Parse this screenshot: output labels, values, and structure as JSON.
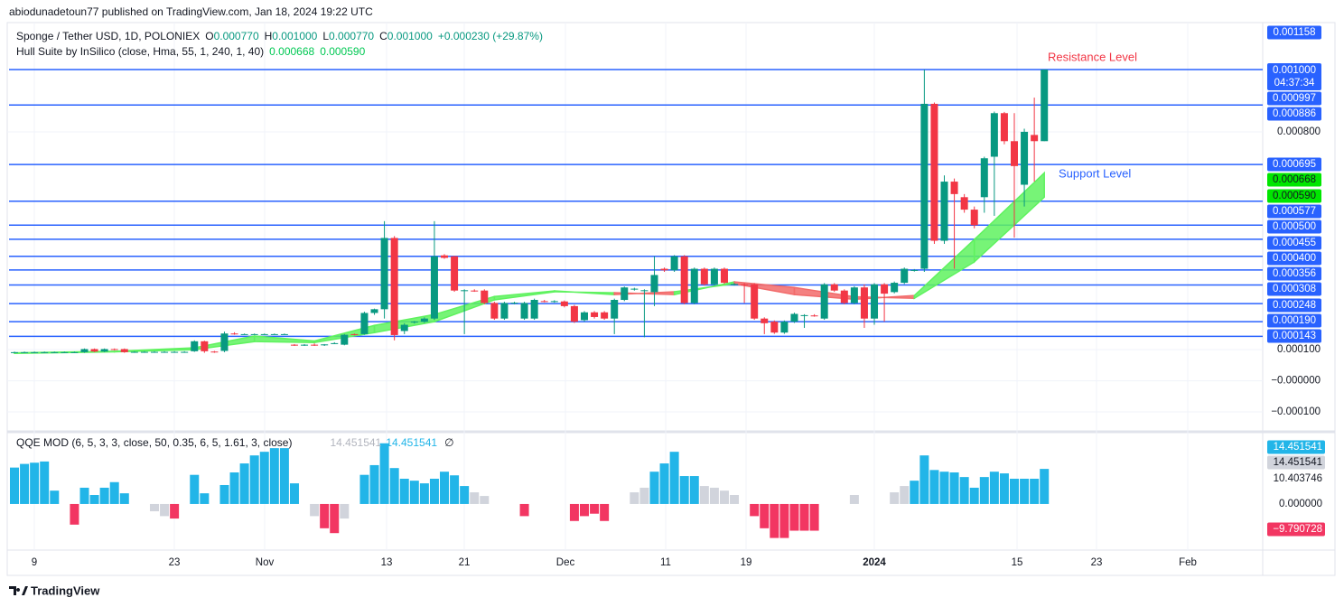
{
  "header": {
    "publisher": "abiodunadetoun77 published on TradingView.com, Jan 18, 2024 19:22 UTC",
    "brand": "TradingView"
  },
  "legend": {
    "symbol": "Sponge / Tether USD, 1D, POLONIEX",
    "ohlc_labels": [
      "O",
      "H",
      "L",
      "C"
    ],
    "ohlc_values": [
      "0.000770",
      "0.001000",
      "0.000770",
      "0.001000"
    ],
    "change": "+0.000230 (+29.87%)",
    "hull_title": "Hull Suite by InSilico (close, Hma, 55, 1, 240, 1, 40)",
    "hull_values": [
      "0.000668",
      "0.000590"
    ],
    "qqe_title": "QQE MOD (6, 5, 3, 3, close, 50, 0.35, 6, 5, 1.61, 3, close)",
    "qqe_values": [
      "14.451541",
      "14.451541"
    ],
    "qqe_symbol": "∅"
  },
  "chart_data": {
    "type": "candlestick",
    "up_color": "#089981",
    "down_color": "#f23645",
    "ylim": [
      -0.000155,
      0.001151
    ],
    "yticks": [
      {
        "value": 0.0008,
        "label": "0.000800"
      },
      {
        "value": 0.0001,
        "label": "0.000100"
      },
      {
        "value": 0,
        "label": "−0.000000"
      },
      {
        "value": -0.0001,
        "label": "−0.000100"
      }
    ],
    "levels": [
      0.001,
      0.000886,
      0.000695,
      0.000577,
      0.0005,
      0.000455,
      0.0004,
      0.000356,
      0.000308,
      0.000248,
      0.00019,
      0.000143
    ],
    "level_color": "#2962ff",
    "price_labels": [
      {
        "value": 0.001158,
        "label": "0.001158",
        "kind": "blue"
      },
      {
        "value": 0.001,
        "label": "0.001000",
        "kind": "blue"
      },
      {
        "value": 0.000997,
        "label": "0.000997",
        "kind": "blue"
      },
      {
        "value": 0.000886,
        "label": "0.000886",
        "kind": "blue"
      },
      {
        "value": 0.000695,
        "label": "0.000695",
        "kind": "blue"
      },
      {
        "value": 0.000668,
        "label": "0.000668",
        "kind": "green"
      },
      {
        "value": 0.00059,
        "label": "0.000590",
        "kind": "green"
      },
      {
        "value": 0.000577,
        "label": "0.000577",
        "kind": "blue"
      },
      {
        "value": 0.0005,
        "label": "0.000500",
        "kind": "blue"
      },
      {
        "value": 0.000455,
        "label": "0.000455",
        "kind": "blue"
      },
      {
        "value": 0.0004,
        "label": "0.000400",
        "kind": "blue"
      },
      {
        "value": 0.000356,
        "label": "0.000356",
        "kind": "blue"
      },
      {
        "value": 0.000308,
        "label": "0.000308",
        "kind": "blue"
      },
      {
        "value": 0.000248,
        "label": "0.000248",
        "kind": "blue"
      },
      {
        "value": 0.00019,
        "label": "0.000190",
        "kind": "blue"
      },
      {
        "value": 0.000143,
        "label": "0.000143",
        "kind": "blue"
      }
    ],
    "countdown": "04:37:34",
    "annotations": {
      "resistance": "Resistance Level",
      "support": "Support Level"
    },
    "time_labels": [
      "9",
      "23",
      "Nov",
      "13",
      "21",
      "Dec",
      "11",
      "19",
      "2024",
      "15",
      "23",
      "Feb"
    ],
    "candles": [
      [
        9.2e-05,
        9.4e-05,
        9e-05,
        9.2e-05
      ],
      [
        9.2e-05,
        9.4e-05,
        9e-05,
        9.2e-05
      ],
      [
        9.2e-05,
        9.4e-05,
        9e-05,
        9.2e-05
      ],
      [
        9.2e-05,
        9.4e-05,
        9e-05,
        9.2e-05
      ],
      [
        9.2e-05,
        9.4e-05,
        9e-05,
        9.2e-05
      ],
      [
        9.2e-05,
        9.4e-05,
        9e-05,
        9.2e-05
      ],
      [
        9.2e-05,
        9.4e-05,
        9e-05,
        9.2e-05
      ],
      [
        9.2e-05,
        0.000104,
        9e-05,
        0.000102
      ],
      [
        0.000102,
        0.000104,
        9.2e-05,
        9.4e-05
      ],
      [
        9.4e-05,
        0.000104,
        9.2e-05,
        0.000102
      ],
      [
        0.000102,
        0.000104,
        9.8e-05,
        0.000101
      ],
      [
        0.000102,
        0.000104,
        9e-05,
        9.2e-05
      ],
      [
        9.2e-05,
        9.5e-05,
        9e-05,
        9.3e-05
      ],
      [
        9.2e-05,
        9.5e-05,
        9e-05,
        9.3e-05
      ],
      [
        9.2e-05,
        9.5e-05,
        9e-05,
        9.3e-05
      ],
      [
        9.2e-05,
        9.5e-05,
        9e-05,
        9.3e-05
      ],
      [
        9.2e-05,
        9.5e-05,
        9e-05,
        9.3e-05
      ],
      [
        9.2e-05,
        9.5e-05,
        9e-05,
        9.3e-05
      ],
      [
        9.5e-05,
        0.00013,
        9.3e-05,
        0.000127
      ],
      [
        0.000127,
        0.000129,
        9e-05,
        9.5e-05
      ],
      [
        9.4e-05,
        9.6e-05,
        9e-05,
        9.3e-05
      ],
      [
        9.6e-05,
        0.000158,
        9.2e-05,
        0.000152
      ],
      [
        0.000152,
        0.000156,
        0.000148,
        0.00015
      ],
      [
        0.00015,
        0.000152,
        0.000148,
        0.00015
      ],
      [
        0.00015,
        0.000152,
        0.000148,
        0.00015
      ],
      [
        0.00015,
        0.000152,
        0.000148,
        0.00015
      ],
      [
        0.00015,
        0.000152,
        0.000148,
        0.00015
      ],
      [
        0.00015,
        0.000152,
        0.000148,
        0.00015
      ],
      [
        0.000116,
        0.000118,
        0.000112,
        0.000114
      ],
      [
        0.000114,
        0.000118,
        0.000112,
        0.000116
      ],
      [
        0.000116,
        0.00012,
        0.000112,
        0.000114
      ],
      [
        0.000114,
        0.000118,
        0.000112,
        0.000117
      ],
      [
        0.00012,
        0.000124,
        0.000118,
        0.000121
      ],
      [
        0.000116,
        0.00015,
        0.000114,
        0.000148
      ],
      [
        0.00015,
        0.000152,
        0.000146,
        0.000149
      ],
      [
        0.00015,
        0.000222,
        0.000148,
        0.000218
      ],
      [
        0.000218,
        0.000232,
        0.000212,
        0.00023
      ],
      [
        0.00023,
        0.000513,
        0.0002,
        0.000459
      ],
      [
        0.000459,
        0.000465,
        0.00013,
        0.000147
      ],
      [
        0.00016,
        0.000185,
        0.00015,
        0.00018
      ],
      [
        0.000188,
        0.000192,
        0.000184,
        0.00019
      ],
      [
        0.00019,
        0.000204,
        0.000186,
        0.0002
      ],
      [
        0.0002,
        0.000513,
        0.000196,
        0.0004
      ],
      [
        0.000403,
        0.000407,
        0.000392,
        0.000395
      ],
      [
        0.0004,
        0.000402,
        0.000286,
        0.00029
      ],
      [
        0.00029,
        0.000294,
        0.00015,
        0.000291
      ],
      [
        0.00029,
        0.000294,
        0.000286,
        0.000289
      ],
      [
        0.00029,
        0.000294,
        0.000246,
        0.00025
      ],
      [
        0.00025,
        0.000254,
        0.000196,
        0.0002
      ],
      [
        0.0002,
        0.000254,
        0.000196,
        0.00025
      ],
      [
        0.00025,
        0.000254,
        0.000246,
        0.000251
      ],
      [
        0.0002,
        0.000254,
        0.000196,
        0.00025
      ],
      [
        0.0002,
        0.000264,
        0.000196,
        0.00026
      ],
      [
        0.000256,
        0.00026,
        0.000252,
        0.000255
      ],
      [
        0.000255,
        0.000259,
        0.000251,
        0.000256
      ],
      [
        0.000255,
        0.000258,
        0.000236,
        0.00024
      ],
      [
        0.00024,
        0.000244,
        0.000186,
        0.00019
      ],
      [
        0.000195,
        0.000224,
        0.00019,
        0.00022
      ],
      [
        0.00022,
        0.000224,
        0.0002,
        0.000205
      ],
      [
        0.00022,
        0.000224,
        0.000196,
        0.0002
      ],
      [
        0.0002,
        0.000264,
        0.00015,
        0.00026
      ],
      [
        0.00026,
        0.000303,
        0.000256,
        0.0003
      ],
      [
        0.000295,
        0.000299,
        0.00029,
        0.000296
      ],
      [
        0.00029,
        0.000294,
        0.00014,
        0.000291
      ],
      [
        0.000285,
        0.0004,
        0.00024,
        0.00034
      ],
      [
        0.00036,
        0.000364,
        0.00035,
        0.000355
      ],
      [
        0.000355,
        0.000404,
        0.00035,
        0.0004
      ],
      [
        0.0004,
        0.000404,
        0.000246,
        0.00025
      ],
      [
        0.00025,
        0.000364,
        0.000246,
        0.00036
      ],
      [
        0.00036,
        0.000364,
        0.000306,
        0.00031
      ],
      [
        0.00031,
        0.000364,
        0.000306,
        0.00036
      ],
      [
        0.00036,
        0.000364,
        0.000311,
        0.000315
      ],
      [
        0.00031,
        0.000314,
        0.000306,
        0.000311
      ],
      [
        0.00031,
        0.000314,
        0.00025,
        0.000309
      ],
      [
        0.00031,
        0.000314,
        0.000196,
        0.0002
      ],
      [
        0.0002,
        0.000204,
        0.00015,
        0.000185
      ],
      [
        0.00019,
        0.000194,
        0.000151,
        0.000155
      ],
      [
        0.000155,
        0.000194,
        0.000151,
        0.00019
      ],
      [
        0.00019,
        0.000219,
        0.000186,
        0.000215
      ],
      [
        0.00021,
        0.000214,
        0.00017,
        0.000211
      ],
      [
        0.00021,
        0.000214,
        0.000206,
        0.000209
      ],
      [
        0.0002,
        0.000314,
        0.000196,
        0.00031
      ],
      [
        0.00031,
        0.000314,
        0.000286,
        0.00029
      ],
      [
        0.00029,
        0.000294,
        0.000246,
        0.00025
      ],
      [
        0.00025,
        0.000304,
        0.000246,
        0.0003
      ],
      [
        0.0003,
        0.00031,
        0.00017,
        0.0002
      ],
      [
        0.0002,
        0.000314,
        0.00018,
        0.00031
      ],
      [
        0.00031,
        0.000314,
        0.00019,
        0.00028
      ],
      [
        0.000285,
        0.000319,
        0.000281,
        0.000315
      ],
      [
        0.000315,
        0.000364,
        0.000311,
        0.00036
      ],
      [
        0.000355,
        0.000359,
        0.000351,
        0.000356
      ],
      [
        0.00036,
        0.001,
        0.00035,
        0.00089
      ],
      [
        0.00089,
        0.000894,
        0.00044,
        0.00045
      ],
      [
        0.00045,
        0.00066,
        0.00044,
        0.00064
      ],
      [
        0.00064,
        0.00065,
        0.00036,
        0.0006
      ],
      [
        0.00059,
        0.0006,
        0.00054,
        0.00055
      ],
      [
        0.00055,
        0.00056,
        0.00049,
        0.0005
      ],
      [
        0.00059,
        0.00072,
        0.00054,
        0.000715
      ],
      [
        0.00072,
        0.000865,
        0.00053,
        0.00086
      ],
      [
        0.00086,
        0.000864,
        0.00076,
        0.00077
      ],
      [
        0.00077,
        0.00086,
        0.00046,
        0.00069
      ],
      [
        0.00063,
        0.00081,
        0.00056,
        0.0008
      ],
      [
        0.00079,
        0.00091,
        0.00064,
        0.00077
      ],
      [
        0.00077,
        0.001,
        0.00077,
        0.001
      ]
    ],
    "hull": {
      "x": [
        0,
        10,
        18,
        24,
        30,
        36,
        42,
        48,
        54,
        60,
        66,
        72,
        78,
        84,
        90,
        96,
        103
      ],
      "a": [
        9e-05,
        9.5e-05,
        0.000106,
        0.000144,
        0.000128,
        0.000178,
        0.000213,
        0.000271,
        0.000289,
        0.000277,
        0.000286,
        0.000312,
        0.000277,
        0.000262,
        0.000274,
        0.000454,
        0.000668
      ],
      "b": [
        8.8e-05,
        9.3e-05,
        0.0001,
        0.000126,
        0.000123,
        0.000155,
        0.00019,
        0.00026,
        0.000286,
        0.000283,
        0.000277,
        0.000318,
        0.0003,
        0.00027,
        0.000265,
        0.000382,
        0.00059
      ],
      "up_color": "#5ff25f",
      "down_color": "#f26b6b"
    },
    "qqe": {
      "ylim": [
        -17.5,
        29
      ],
      "values": [
        15,
        16.5,
        17,
        17.5,
        5.5,
        null,
        -8.5,
        6.7,
        3.7,
        6.7,
        9,
        4.4,
        null,
        null,
        -3,
        -5,
        -6,
        null,
        12,
        4.4,
        null,
        7.8,
        13,
        16.7,
        20,
        21.5,
        23,
        23,
        8.5,
        null,
        -5,
        -10,
        -12,
        -6,
        null,
        12,
        16,
        25,
        14.8,
        10.4,
        9.6,
        8.5,
        10.4,
        13.3,
        11.8,
        7.4,
        4.8,
        3.3,
        null,
        null,
        null,
        -5,
        null,
        null,
        null,
        null,
        -7,
        -5,
        -4,
        -7,
        null,
        null,
        4.8,
        6.7,
        13.3,
        16.7,
        21.5,
        11.5,
        11.5,
        7.4,
        6.7,
        5.5,
        3.7,
        null,
        -5,
        -10,
        -14,
        -14,
        -11,
        -11,
        -11,
        null,
        null,
        null,
        3.7,
        null,
        null,
        null,
        4.8,
        7.4,
        9.6,
        20,
        14,
        13.3,
        13,
        11.1,
        6.7,
        11.1,
        13.3,
        12.6,
        10.4,
        10.4,
        10.4,
        14.451541
      ],
      "kinds": [
        "b",
        "b",
        "b",
        "b",
        "b",
        null,
        "r",
        "b",
        "b",
        "b",
        "b",
        "b",
        null,
        null,
        "g",
        "g",
        "r",
        null,
        "b",
        "b",
        null,
        "b",
        "b",
        "b",
        "b",
        "b",
        "b",
        "b",
        "b",
        null,
        "g",
        "r",
        "r",
        "g",
        null,
        "b",
        "b",
        "b",
        "b",
        "b",
        "b",
        "b",
        "b",
        "b",
        "b",
        "b",
        "g",
        "g",
        null,
        null,
        null,
        "r",
        null,
        null,
        null,
        null,
        "r",
        "r",
        "r",
        "r",
        null,
        null,
        "g",
        "g",
        "b",
        "b",
        "b",
        "b",
        "b",
        "g",
        "g",
        "g",
        "g",
        null,
        "r",
        "r",
        "r",
        "r",
        "r",
        "r",
        "r",
        null,
        null,
        null,
        "g",
        null,
        null,
        null,
        "g",
        "g",
        "b",
        "b",
        "b",
        "b",
        "b",
        "b",
        "b",
        "b",
        "b",
        "b",
        "b",
        "b",
        "b",
        "b"
      ],
      "palette": {
        "b": "#22b5e8",
        "g": "#d1d4dc",
        "r": "#f23662"
      },
      "labels": [
        {
          "value": 14.451541,
          "label": "14.451541",
          "kind": "b"
        },
        {
          "value": 14.451541,
          "label": "14.451541",
          "kind": "g"
        },
        {
          "value": 10.403746,
          "label": "10.403746",
          "kind": "plain"
        },
        {
          "value": 0,
          "label": "0.000000",
          "kind": "plain"
        },
        {
          "value": -9.790728,
          "label": "−9.790728",
          "kind": "r"
        }
      ]
    }
  }
}
